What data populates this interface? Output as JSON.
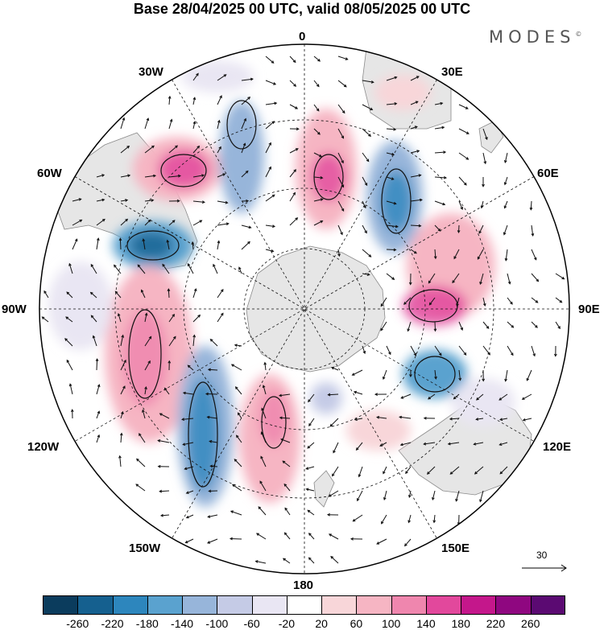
{
  "title": "Base 28/04/2025 00 UTC, valid 08/05/2025 00 UTC",
  "brand": "MODES",
  "brand_mark": "©",
  "longitude_labels": {
    "l0": "0",
    "l30e": "30E",
    "l60e": "60E",
    "l90e": "90E",
    "l120e": "120E",
    "l150e": "150E",
    "l180": "180",
    "l150w": "150W",
    "l120w": "120W",
    "l90w": "90W",
    "l60w": "60W",
    "l30w": "30W"
  },
  "reference_vector": "30",
  "colorbar": {
    "ticks": [
      "-260",
      "-220",
      "-180",
      "-140",
      "-100",
      "-60",
      "-20",
      "20",
      "60",
      "100",
      "140",
      "180",
      "220",
      "260"
    ],
    "colors": [
      "#0b3c5d",
      "#15608f",
      "#2d86bd",
      "#5aa2cf",
      "#97b5da",
      "#c5cbe6",
      "#e9e6f3",
      "#ffffff",
      "#f8d6d9",
      "#f6b5c3",
      "#ef86ae",
      "#e2489c",
      "#c4178b",
      "#8f0780",
      "#5b0a72"
    ]
  },
  "icons": {
    "reference_arrow": "arrow-right-icon"
  }
}
